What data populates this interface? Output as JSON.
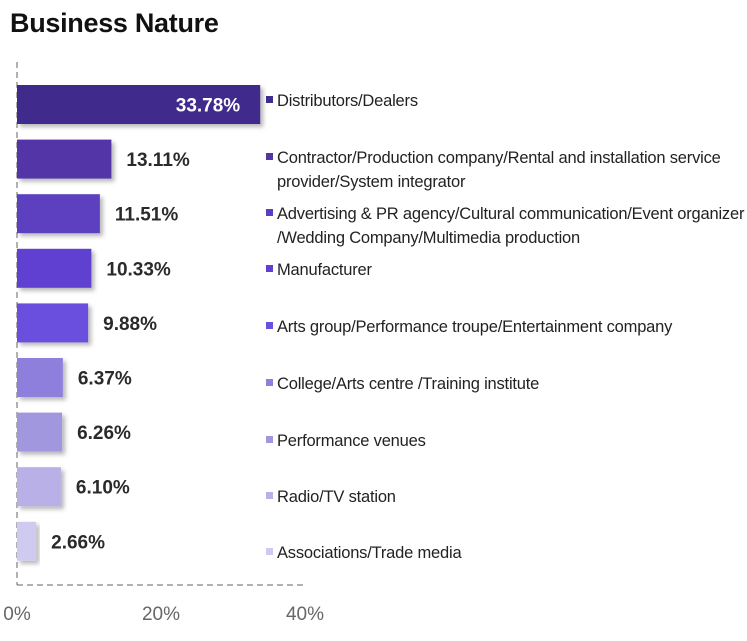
{
  "chart_data": {
    "type": "bar",
    "orientation": "horizontal",
    "title": "Business Nature",
    "categories": [
      "Distributors/Dealers",
      "Contractor/Production company/Rental and installation service provider/System integrator",
      "Advertising & PR agency/Cultural communication/Event organizer /Wedding Company/Multimedia production",
      "Manufacturer",
      "Arts group/Performance troupe/Entertainment company",
      "College/Arts centre /Training institute",
      "Performance venues",
      "Radio/TV station",
      "Associations/Trade media"
    ],
    "values": [
      33.78,
      13.11,
      11.51,
      10.33,
      9.88,
      6.37,
      6.26,
      6.1,
      2.66
    ],
    "value_labels": [
      "33.78%",
      "13.11%",
      "11.51%",
      "10.33%",
      "9.88%",
      "6.37%",
      "6.26%",
      "6.10%",
      "2.66%"
    ],
    "colors": [
      "#3f2c8c",
      "#5236a8",
      "#5c3fc0",
      "#613fd0",
      "#6b4fdf",
      "#8f7fdc",
      "#a197df",
      "#b9b0e7",
      "#cfcbf0"
    ],
    "xlim": [
      0,
      40
    ],
    "x_ticks": [
      0,
      20,
      40
    ],
    "x_tick_labels": [
      "0%",
      "20%",
      "40%"
    ],
    "legend_position": "right",
    "grid": false
  }
}
